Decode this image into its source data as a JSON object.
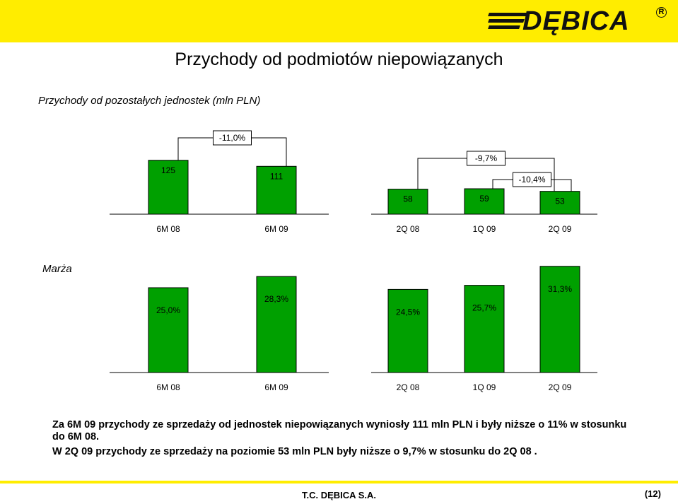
{
  "header": {
    "brand": "DĘBICA",
    "registered_mark": "R",
    "brand_color": "#ffed00",
    "logo_icon": "debica-logo-icon"
  },
  "title": "Przychody od podmiotów niepowiązanych",
  "footer": {
    "company": "T.C. DĘBICA S.A.",
    "page": "(12)"
  },
  "notes": [
    "Za 6M 09 przychody ze sprzedaży od jednostek niepowiązanych wyniosły 111 mln PLN i były niższe o 11% w stosunku do 6M 08.",
    "W 2Q 09 przychody ze sprzedaży na poziomie 53 mln PLN były niższe o 9,7% w stosunku do 2Q 08 ."
  ],
  "chart_data": [
    {
      "type": "bar",
      "title": "Przychody od pozostałych jednostek (mln PLN)",
      "bar_color": "#00a000",
      "groups": [
        {
          "categories": [
            "6M 08",
            "6M 09"
          ],
          "values": [
            125,
            111
          ],
          "labels": [
            "125",
            "111"
          ]
        },
        {
          "categories": [
            "2Q 08",
            "1Q 09",
            "2Q 09"
          ],
          "values": [
            58,
            59,
            53
          ],
          "labels": [
            "58",
            "59",
            "53"
          ]
        }
      ],
      "annotations": [
        {
          "text": "-11,0%",
          "from": "6M 08",
          "to": "6M 09"
        },
        {
          "text": "-9,7%",
          "from": "2Q 08",
          "to": "2Q 09"
        },
        {
          "text": "-10,4%",
          "from": "1Q 09",
          "to": "2Q 09"
        }
      ]
    },
    {
      "type": "bar",
      "title": "Marża",
      "bar_color": "#00a000",
      "groups": [
        {
          "categories": [
            "6M 08",
            "6M 09"
          ],
          "values": [
            25.0,
            28.3
          ],
          "labels": [
            "25,0%",
            "28,3%"
          ]
        },
        {
          "categories": [
            "2Q 08",
            "1Q 09",
            "2Q 09"
          ],
          "values": [
            24.5,
            25.7,
            31.3
          ],
          "labels": [
            "24,5%",
            "25,7%",
            "31,3%"
          ]
        }
      ]
    }
  ]
}
